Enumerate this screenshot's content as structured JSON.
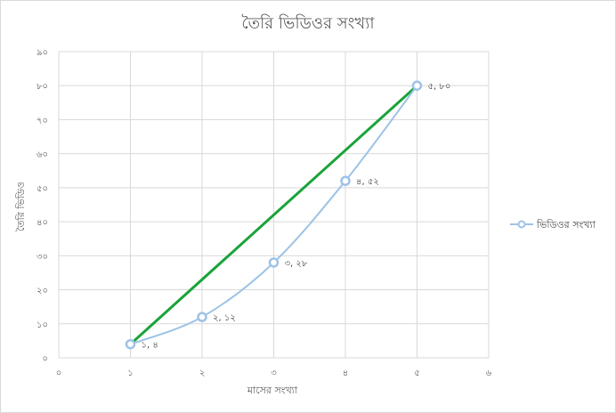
{
  "chart_data": {
    "type": "scatter",
    "title": "তৈরি ভিডিওর সংখ্যা",
    "xlabel": "মাসের সংখ্যা",
    "ylabel": "তৈরি ভিডিও",
    "xlim": [
      0,
      6
    ],
    "ylim": [
      0,
      90
    ],
    "x_ticks": [
      0,
      1,
      2,
      3,
      4,
      5,
      6
    ],
    "y_ticks": [
      0,
      10,
      20,
      30,
      40,
      50,
      60,
      70,
      80,
      90
    ],
    "x_tick_labels": [
      "০",
      "১",
      "২",
      "৩",
      "৪",
      "৫",
      "৬"
    ],
    "y_tick_labels": [
      "০",
      "১০",
      "২০",
      "৩০",
      "৪০",
      "৫০",
      "৬০",
      "৭০",
      "৮০",
      "৯০"
    ],
    "grid": true,
    "legend_position": "right",
    "series": [
      {
        "name": "ভিডিওর সংখ্যা",
        "color": "#9dc3e6",
        "x": [
          1,
          2,
          3,
          4,
          5
        ],
        "y": [
          4,
          12,
          28,
          52,
          80
        ],
        "labels": [
          "১, ৪",
          "২, ১২",
          "৩, ২৮",
          "৪, ৫২",
          "৫, ৮০"
        ]
      }
    ],
    "trendline": {
      "color": "#1aa33a",
      "x": [
        1,
        5
      ],
      "y": [
        4,
        80
      ]
    }
  }
}
